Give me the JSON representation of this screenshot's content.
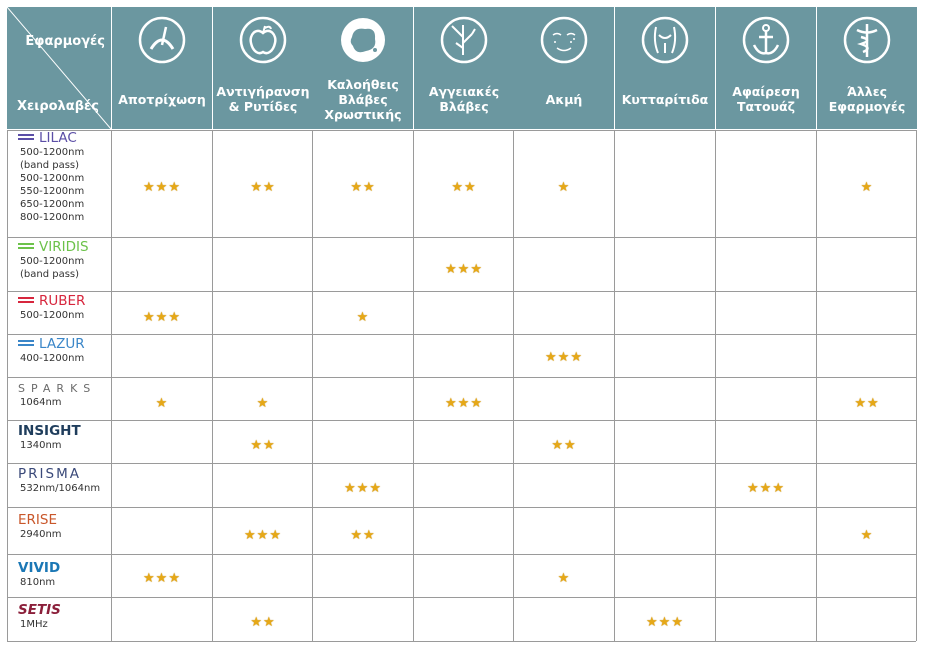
{
  "corner": {
    "top_label": "Εφαρμογές",
    "bottom_label": "Χειρολαβές"
  },
  "columns": [
    {
      "label": "Αποτρίχωση",
      "icon": "hair-follicle-icon"
    },
    {
      "label": "Αντιγήρανση\n& Ρυτίδες",
      "icon": "apple-icon"
    },
    {
      "label": "Καλοήθεις\nΒλάβες\nΧρωστικής",
      "icon": "pigment-spot-icon"
    },
    {
      "label": "Αγγειακές\nΒλάβες",
      "icon": "blood-vessel-icon"
    },
    {
      "label": "Ακμή",
      "icon": "acne-face-icon"
    },
    {
      "label": "Κυτταρίτιδα",
      "icon": "cellulite-body-icon"
    },
    {
      "label": "Αφαίρεση\nΤατουάζ",
      "icon": "anchor-tattoo-icon"
    },
    {
      "label": "Άλλες\nΕφαρμογές",
      "icon": "caduceus-icon"
    }
  ],
  "rows": [
    {
      "brand": "LILAC",
      "brand_color": "#5b4ea6",
      "spec": "500-1200nm\n(band pass)\n500-1200nm\n550-1200nm\n650-1200nm\n800-1200nm",
      "ratings": [
        3,
        2,
        2,
        2,
        1,
        0,
        0,
        1
      ]
    },
    {
      "brand": "VIRIDIS",
      "brand_color": "#6cc24a",
      "spec": "500-1200nm\n(band pass)",
      "ratings": [
        0,
        0,
        0,
        3,
        0,
        0,
        0,
        0
      ]
    },
    {
      "brand": "RUBER",
      "brand_color": "#d7263d",
      "spec": "500-1200nm",
      "ratings": [
        3,
        0,
        1,
        0,
        0,
        0,
        0,
        0
      ]
    },
    {
      "brand": "LAZUR",
      "brand_color": "#3a86c8",
      "spec": "400-1200nm",
      "ratings": [
        0,
        0,
        0,
        0,
        3,
        0,
        0,
        0
      ]
    },
    {
      "brand": "SPARKS",
      "brand_color": "#6b6b6b",
      "spec": "1064nm",
      "ratings": [
        1,
        1,
        0,
        3,
        0,
        0,
        0,
        2
      ]
    },
    {
      "brand": "INSIGHT",
      "brand_color": "#1f3d5c",
      "spec": "1340nm",
      "ratings": [
        0,
        2,
        0,
        0,
        2,
        0,
        0,
        0
      ]
    },
    {
      "brand": "PRISMA",
      "brand_color": "#3b4a7a",
      "spec": "532nm/1064nm",
      "ratings": [
        0,
        0,
        3,
        0,
        0,
        0,
        3,
        0
      ]
    },
    {
      "brand": "ERISE",
      "brand_color": "#c9572a",
      "spec": "2940nm",
      "ratings": [
        0,
        3,
        2,
        0,
        0,
        0,
        0,
        1
      ]
    },
    {
      "brand": "VIVID",
      "brand_color": "#1a77b5",
      "spec": "810nm",
      "ratings": [
        3,
        0,
        0,
        0,
        1,
        0,
        0,
        0
      ]
    },
    {
      "brand": "SETIS",
      "brand_color": "#8b1f3a",
      "spec": "1MHz",
      "ratings": [
        0,
        2,
        0,
        0,
        0,
        3,
        0,
        0
      ]
    }
  ],
  "colors": {
    "header_bg": "#6b97a0",
    "star": "#e6a817",
    "grid": "#9a9a9a"
  }
}
